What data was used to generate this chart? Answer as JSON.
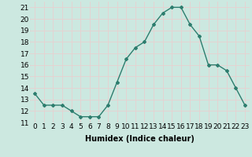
{
  "x": [
    0,
    1,
    2,
    3,
    4,
    5,
    6,
    7,
    8,
    9,
    10,
    11,
    12,
    13,
    14,
    15,
    16,
    17,
    18,
    19,
    20,
    21,
    22,
    23
  ],
  "y": [
    13.5,
    12.5,
    12.5,
    12.5,
    12.0,
    11.5,
    11.5,
    11.5,
    12.5,
    14.5,
    16.5,
    17.5,
    18.0,
    19.5,
    20.5,
    21.0,
    21.0,
    19.5,
    18.5,
    16.0,
    16.0,
    15.5,
    14.0,
    12.5
  ],
  "title": "",
  "xlabel": "Humidex (Indice chaleur)",
  "ylabel": "",
  "ylim": [
    11,
    21.5
  ],
  "xlim": [
    -0.5,
    23.5
  ],
  "yticks": [
    11,
    12,
    13,
    14,
    15,
    16,
    17,
    18,
    19,
    20,
    21
  ],
  "xtick_labels": [
    "0",
    "1",
    "2",
    "3",
    "4",
    "5",
    "6",
    "7",
    "8",
    "9",
    "10",
    "11",
    "12",
    "13",
    "14",
    "15",
    "16",
    "17",
    "18",
    "19",
    "20",
    "21",
    "22",
    "23"
  ],
  "line_color": "#2d7d6e",
  "marker": "D",
  "marker_size": 2.0,
  "bg_color": "#cce8e0",
  "grid_color": "#e8d0d0",
  "line_width": 1.0,
  "xlabel_fontsize": 7,
  "tick_fontsize": 6.5
}
